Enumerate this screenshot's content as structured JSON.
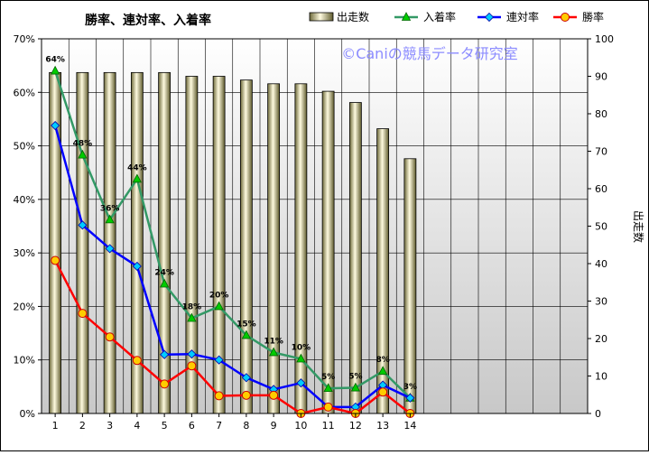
{
  "chart_data": {
    "type": "bar",
    "title": "勝率、連対率、入着率",
    "watermark": "©Caniの競馬データ研究室",
    "categories": [
      "1",
      "2",
      "3",
      "4",
      "5",
      "6",
      "7",
      "8",
      "9",
      "10",
      "11",
      "12",
      "13",
      "14"
    ],
    "y_left": {
      "ylim": [
        0,
        70
      ],
      "ticks": [
        "0%",
        "10%",
        "20%",
        "30%",
        "40%",
        "50%",
        "60%",
        "70%"
      ]
    },
    "y_right": {
      "label": "出走数",
      "ylim": [
        0,
        100
      ],
      "ticks": [
        "0",
        "10",
        "20",
        "30",
        "40",
        "50",
        "60",
        "70",
        "80",
        "90",
        "100"
      ]
    },
    "grid": true,
    "legend_placement": "top",
    "series": [
      {
        "name": "出走数",
        "kind": "bar",
        "axis": "right",
        "color": "#e8e4b0",
        "values": [
          91,
          91,
          91,
          91,
          91,
          90,
          90,
          89,
          88,
          88,
          86,
          83,
          76,
          68
        ]
      },
      {
        "name": "入着率",
        "kind": "line",
        "axis": "left",
        "color": "#339966",
        "marker": "triangle",
        "marker_color": "#00cc00",
        "values": [
          64,
          48.3,
          36.2,
          43.8,
          24.2,
          17.8,
          20,
          14.6,
          11.4,
          10.2,
          4.7,
          4.8,
          7.9,
          2.9
        ],
        "labels": [
          "64%",
          "48%",
          "36%",
          "44%",
          "24%",
          "18%",
          "20%",
          "15%",
          "11%",
          "10%",
          "5%",
          "5%",
          "8%",
          "3%"
        ]
      },
      {
        "name": "連対率",
        "kind": "line",
        "axis": "left",
        "color": "#0000ff",
        "marker": "diamond",
        "marker_color": "#00ccff",
        "values": [
          53.8,
          35.2,
          30.8,
          27.5,
          11,
          11.1,
          10,
          6.7,
          4.5,
          5.7,
          1.2,
          1.2,
          5.3,
          2.9
        ]
      },
      {
        "name": "勝率",
        "kind": "line",
        "axis": "left",
        "color": "#ff0000",
        "marker": "circle",
        "marker_color": "#ffcc00",
        "values": [
          28.6,
          18.7,
          14.3,
          9.9,
          5.5,
          8.9,
          3.3,
          3.4,
          3.4,
          0,
          1.2,
          0,
          4,
          0
        ]
      }
    ]
  }
}
